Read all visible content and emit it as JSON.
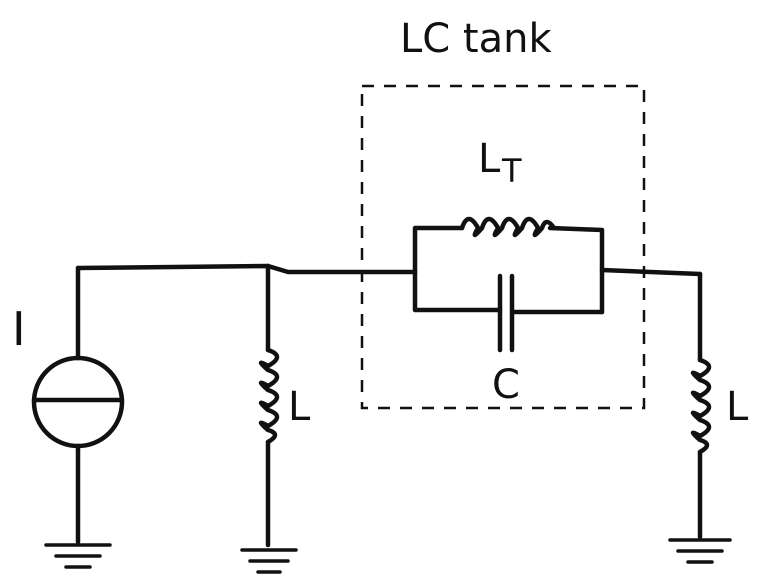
{
  "diagram": {
    "tank_label": "LC tank",
    "source_label": "I",
    "left_inductor_label": "L",
    "right_inductor_label": "L",
    "tank_inductor_label": "L",
    "tank_inductor_subscript": "T",
    "tank_capacitor_label": "C"
  }
}
